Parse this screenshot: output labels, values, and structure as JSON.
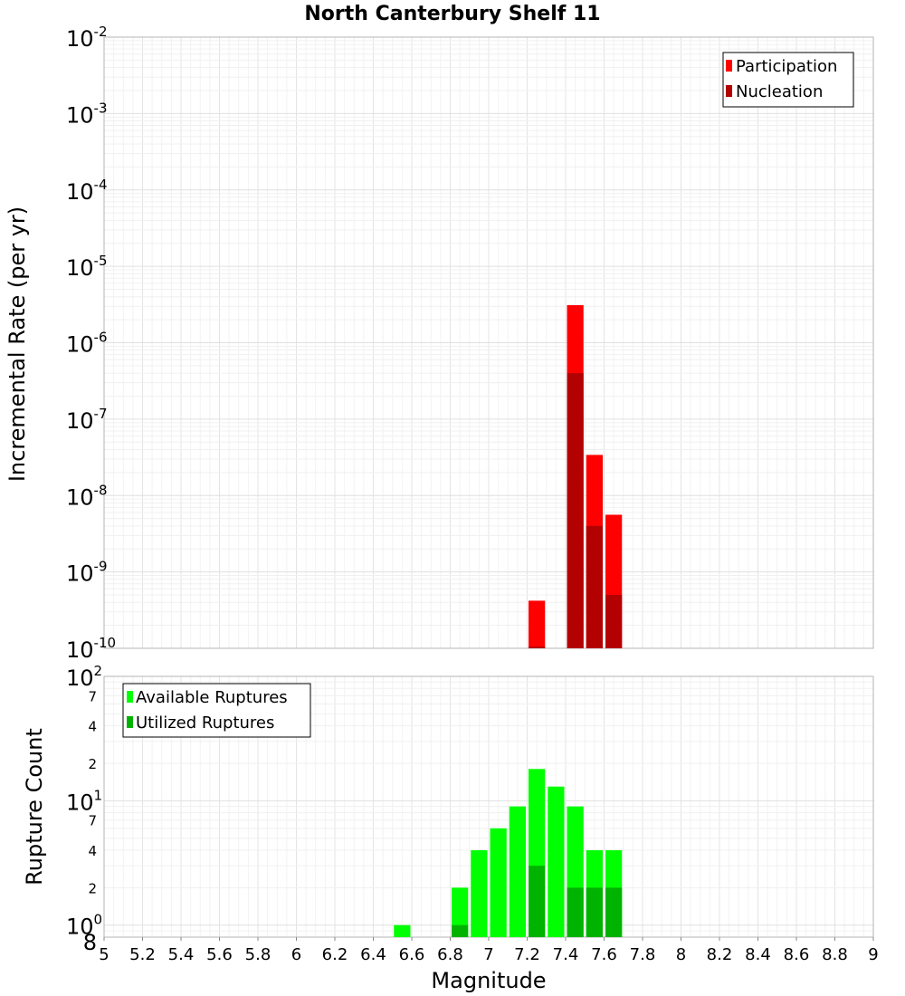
{
  "chart_data": [
    {
      "panel": "top",
      "type": "bar",
      "title": "North Canterbury Shelf 11",
      "xlabel": "",
      "ylabel": "Incremental Rate (per yr)",
      "yscale": "log",
      "ylim": [
        1e-10,
        0.01
      ],
      "y_ticks": [
        {
          "base": "10",
          "exp": "-10",
          "v": 1e-10
        },
        {
          "base": "10",
          "exp": "-9",
          "v": 1e-09
        },
        {
          "base": "10",
          "exp": "-8",
          "v": 1e-08
        },
        {
          "base": "10",
          "exp": "-7",
          "v": 1e-07
        },
        {
          "base": "10",
          "exp": "-6",
          "v": 1e-06
        },
        {
          "base": "10",
          "exp": "-5",
          "v": 1e-05
        },
        {
          "base": "10",
          "exp": "-4",
          "v": 0.0001
        },
        {
          "base": "10",
          "exp": "-3",
          "v": 0.001
        },
        {
          "base": "10",
          "exp": "-2",
          "v": 0.01
        }
      ],
      "bar_width": 0.1,
      "series": [
        {
          "name": "Participation",
          "color": "#ff0000",
          "x": [
            7.25,
            7.45,
            7.55,
            7.65
          ],
          "values": [
            4.2e-10,
            3.1e-06,
            3.4e-08,
            5.6e-09
          ]
        },
        {
          "name": "Nucleation",
          "color": "#b30000",
          "x": [
            7.25,
            7.45,
            7.55,
            7.65
          ],
          "values": [
            1.05e-10,
            4e-07,
            4e-09,
            5e-10
          ]
        }
      ],
      "legend": "top-right"
    },
    {
      "panel": "bottom",
      "type": "bar",
      "title": "",
      "xlabel": "Magnitude",
      "ylabel": "Rupture Count",
      "yscale": "log",
      "ylim": [
        0.8,
        100
      ],
      "xlim": [
        5,
        9
      ],
      "x_ticks": [
        "5",
        "5.2",
        "5.4",
        "5.6",
        "5.8",
        "6",
        "6.2",
        "6.4",
        "6.6",
        "6.8",
        "7",
        "7.2",
        "7.4",
        "7.6",
        "7.8",
        "8",
        "8.2",
        "8.4",
        "8.6",
        "8.8",
        "9"
      ],
      "y_major_ticks": [
        {
          "base": "10",
          "exp": "0",
          "v": 1
        },
        {
          "base": "10",
          "exp": "1",
          "v": 10
        },
        {
          "base": "10",
          "exp": "2",
          "v": 100
        }
      ],
      "y_minor_ticks": [
        {
          "label": "8",
          "v": 0.8
        },
        {
          "label": "2",
          "v": 2
        },
        {
          "label": "4",
          "v": 4
        },
        {
          "label": "7",
          "v": 7
        },
        {
          "label": "2",
          "v": 20
        },
        {
          "label": "4",
          "v": 40
        },
        {
          "label": "7",
          "v": 70
        }
      ],
      "bar_width": 0.1,
      "series": [
        {
          "name": "Available Ruptures",
          "color": "#00ff00",
          "x": [
            6.55,
            6.85,
            6.95,
            7.05,
            7.15,
            7.25,
            7.35,
            7.45,
            7.55,
            7.65
          ],
          "values": [
            1,
            2,
            4,
            6,
            9,
            18,
            13,
            9,
            4,
            4
          ]
        },
        {
          "name": "Utilized Ruptures",
          "color": "#00b300",
          "x": [
            6.85,
            7.25,
            7.45,
            7.55,
            7.65
          ],
          "values": [
            1,
            3,
            2,
            2,
            2
          ]
        }
      ],
      "legend": "top-left"
    }
  ]
}
